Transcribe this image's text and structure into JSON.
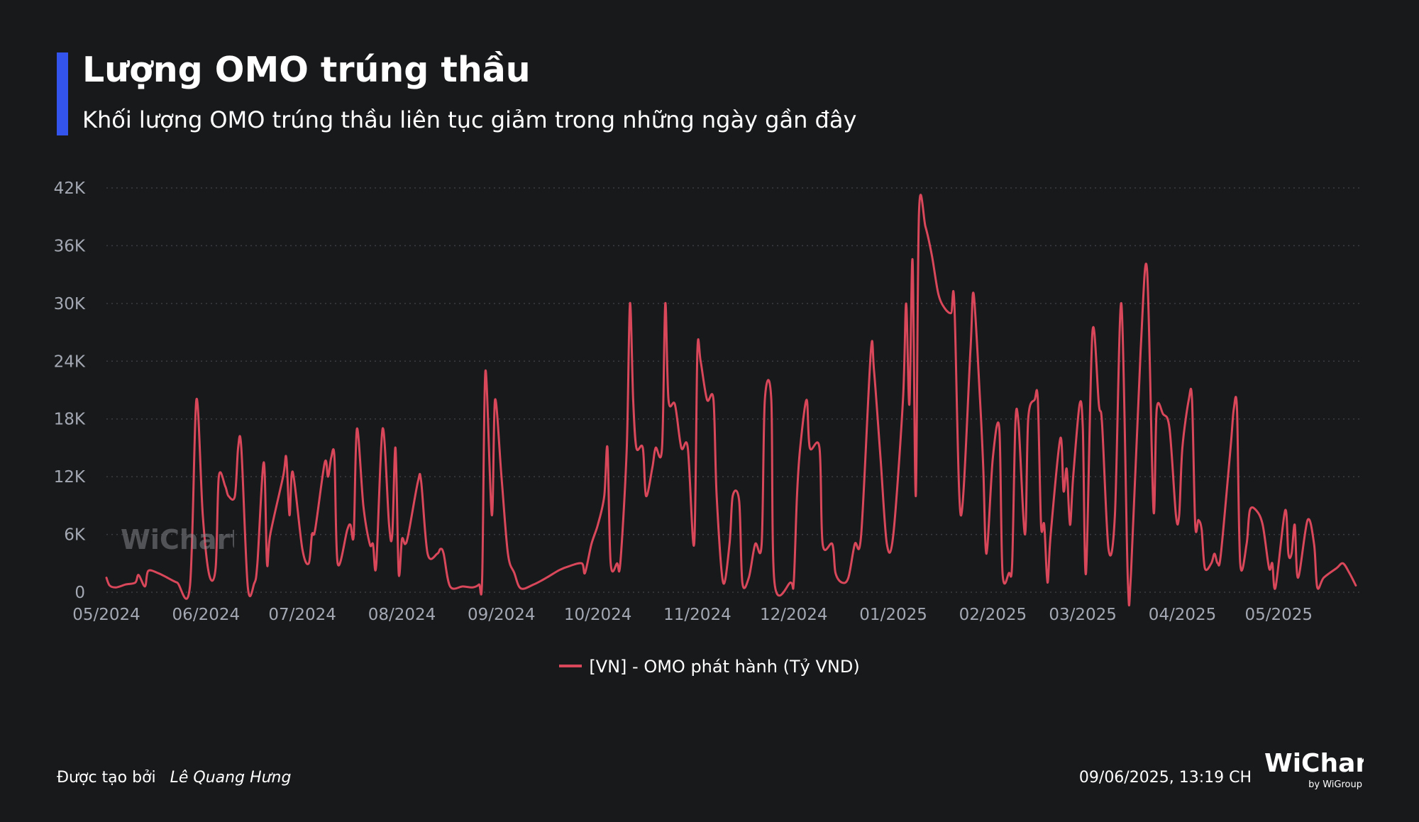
{
  "header": {
    "title": "Lượng OMO trúng thầu",
    "subtitle": "Khối lượng OMO trúng thầu liên tục giảm trong những ngày gần đây",
    "accent_color": "#3355ee"
  },
  "chart_data": {
    "type": "line",
    "title": "Lượng OMO trúng thầu",
    "subtitle": "Khối lượng OMO trúng thầu liên tục giảm trong những ngày gần đây",
    "xlabel": "",
    "ylabel": "",
    "ylim": [
      0,
      42000
    ],
    "y_ticks": [
      0,
      6000,
      12000,
      18000,
      24000,
      30000,
      36000,
      42000
    ],
    "y_tick_labels": [
      "0",
      "6K",
      "12K",
      "18K",
      "24K",
      "30K",
      "36K",
      "42K"
    ],
    "x_range": [
      "2024-05-01",
      "2025-05-27"
    ],
    "x_ticks": [
      "2024-05-01",
      "2024-06-01",
      "2024-07-01",
      "2024-08-01",
      "2024-09-01",
      "2024-10-01",
      "2024-11-01",
      "2024-12-01",
      "2025-01-01",
      "2025-02-01",
      "2025-03-01",
      "2025-04-01",
      "2025-05-01"
    ],
    "x_tick_labels": [
      "05/2024",
      "06/2024",
      "07/2024",
      "08/2024",
      "09/2024",
      "10/2024",
      "11/2024",
      "12/2024",
      "01/2025",
      "02/2025",
      "03/2025",
      "04/2025",
      "05/2025"
    ],
    "grid": "horizontal-dotted",
    "legend_position": "bottom-center",
    "series": [
      {
        "name": "[VN] - OMO phát hành (Tỷ VND)",
        "color": "#d9475a",
        "points": [
          [
            "2024-05-01",
            1500
          ],
          [
            "2024-05-02",
            700
          ],
          [
            "2024-05-04",
            500
          ],
          [
            "2024-05-07",
            800
          ],
          [
            "2024-05-10",
            1000
          ],
          [
            "2024-05-11",
            1800
          ],
          [
            "2024-05-13",
            600
          ],
          [
            "2024-05-14",
            2200
          ],
          [
            "2024-05-17",
            2000
          ],
          [
            "2024-05-20",
            1500
          ],
          [
            "2024-05-23",
            1000
          ],
          [
            "2024-05-27",
            600
          ],
          [
            "2024-05-29",
            20000
          ],
          [
            "2024-05-31",
            8000
          ],
          [
            "2024-06-02",
            1800
          ],
          [
            "2024-06-04",
            2500
          ],
          [
            "2024-06-05",
            12000
          ],
          [
            "2024-06-07",
            11000
          ],
          [
            "2024-06-08",
            10000
          ],
          [
            "2024-06-10",
            10000
          ],
          [
            "2024-06-11",
            15000
          ],
          [
            "2024-06-12",
            15000
          ],
          [
            "2024-06-14",
            600
          ],
          [
            "2024-06-16",
            900
          ],
          [
            "2024-06-17",
            3000
          ],
          [
            "2024-06-19",
            13500
          ],
          [
            "2024-06-20",
            3000
          ],
          [
            "2024-06-21",
            6000
          ],
          [
            "2024-06-25",
            12000
          ],
          [
            "2024-06-26",
            14000
          ],
          [
            "2024-06-27",
            8000
          ],
          [
            "2024-06-28",
            12500
          ],
          [
            "2024-07-01",
            4500
          ],
          [
            "2024-07-03",
            3000
          ],
          [
            "2024-07-04",
            6000
          ],
          [
            "2024-07-05",
            6500
          ],
          [
            "2024-07-08",
            13500
          ],
          [
            "2024-07-09",
            12000
          ],
          [
            "2024-07-10",
            14000
          ],
          [
            "2024-07-11",
            14000
          ],
          [
            "2024-07-12",
            3000
          ],
          [
            "2024-07-15",
            6500
          ],
          [
            "2024-07-16",
            7000
          ],
          [
            "2024-07-17",
            6000
          ],
          [
            "2024-07-18",
            17000
          ],
          [
            "2024-07-20",
            9000
          ],
          [
            "2024-07-22",
            5000
          ],
          [
            "2024-07-23",
            5000
          ],
          [
            "2024-07-24",
            2800
          ],
          [
            "2024-07-26",
            17000
          ],
          [
            "2024-07-28",
            7000
          ],
          [
            "2024-07-29",
            6000
          ],
          [
            "2024-07-30",
            15000
          ],
          [
            "2024-07-31",
            2000
          ],
          [
            "2024-08-01",
            5500
          ],
          [
            "2024-08-02",
            5000
          ],
          [
            "2024-08-03",
            6000
          ],
          [
            "2024-08-06",
            11500
          ],
          [
            "2024-08-07",
            11500
          ],
          [
            "2024-08-09",
            4000
          ],
          [
            "2024-08-12",
            4000
          ],
          [
            "2024-08-13",
            4500
          ],
          [
            "2024-08-14",
            4000
          ],
          [
            "2024-08-16",
            600
          ],
          [
            "2024-08-20",
            600
          ],
          [
            "2024-08-23",
            500
          ],
          [
            "2024-08-25",
            800
          ],
          [
            "2024-08-26",
            1500
          ],
          [
            "2024-08-27",
            23000
          ],
          [
            "2024-08-29",
            8000
          ],
          [
            "2024-08-30",
            20000
          ],
          [
            "2024-09-01",
            12000
          ],
          [
            "2024-09-03",
            4000
          ],
          [
            "2024-09-05",
            2000
          ],
          [
            "2024-09-07",
            400
          ],
          [
            "2024-09-11",
            800
          ],
          [
            "2024-09-15",
            1500
          ],
          [
            "2024-09-19",
            2300
          ],
          [
            "2024-09-22",
            2700
          ],
          [
            "2024-09-26",
            3000
          ],
          [
            "2024-09-27",
            2000
          ],
          [
            "2024-09-29",
            5000
          ],
          [
            "2024-10-01",
            7000
          ],
          [
            "2024-10-03",
            10000
          ],
          [
            "2024-10-04",
            15000
          ],
          [
            "2024-10-05",
            3000
          ],
          [
            "2024-10-07",
            3000
          ],
          [
            "2024-10-08",
            3000
          ],
          [
            "2024-10-10",
            15000
          ],
          [
            "2024-10-11",
            30000
          ],
          [
            "2024-10-12",
            20000
          ],
          [
            "2024-10-13",
            15000
          ],
          [
            "2024-10-15",
            15000
          ],
          [
            "2024-10-16",
            10000
          ],
          [
            "2024-10-18",
            13000
          ],
          [
            "2024-10-19",
            15000
          ],
          [
            "2024-10-21",
            15000
          ],
          [
            "2024-10-22",
            30000
          ],
          [
            "2024-10-23",
            20000
          ],
          [
            "2024-10-25",
            19500
          ],
          [
            "2024-10-27",
            15000
          ],
          [
            "2024-10-29",
            15000
          ],
          [
            "2024-10-31",
            5000
          ],
          [
            "2024-11-01",
            25000
          ],
          [
            "2024-11-02",
            24000
          ],
          [
            "2024-11-04",
            20000
          ],
          [
            "2024-11-06",
            20000
          ],
          [
            "2024-11-07",
            10000
          ],
          [
            "2024-11-09",
            1000
          ],
          [
            "2024-11-11",
            5000
          ],
          [
            "2024-11-12",
            10000
          ],
          [
            "2024-11-14",
            9500
          ],
          [
            "2024-11-15",
            1000
          ],
          [
            "2024-11-17",
            1500
          ],
          [
            "2024-11-19",
            5000
          ],
          [
            "2024-11-21",
            5000
          ],
          [
            "2024-11-22",
            20000
          ],
          [
            "2024-11-24",
            20000
          ],
          [
            "2024-11-25",
            1000
          ],
          [
            "2024-11-30",
            1000
          ],
          [
            "2024-12-01",
            1000
          ],
          [
            "2024-12-02",
            10000
          ],
          [
            "2024-12-03",
            15000
          ],
          [
            "2024-12-05",
            20000
          ],
          [
            "2024-12-06",
            15000
          ],
          [
            "2024-12-09",
            15000
          ],
          [
            "2024-12-10",
            5000
          ],
          [
            "2024-12-13",
            5000
          ],
          [
            "2024-12-14",
            2000
          ],
          [
            "2024-12-16",
            1000
          ],
          [
            "2024-12-18",
            1500
          ],
          [
            "2024-12-20",
            5000
          ],
          [
            "2024-12-22",
            6000
          ],
          [
            "2024-12-25",
            25000
          ],
          [
            "2024-12-26",
            23000
          ],
          [
            "2024-12-28",
            14000
          ],
          [
            "2024-12-30",
            5000
          ],
          [
            "2025-01-01",
            6000
          ],
          [
            "2025-01-04",
            20000
          ],
          [
            "2025-01-05",
            30000
          ],
          [
            "2025-01-06",
            19500
          ],
          [
            "2025-01-07",
            34500
          ],
          [
            "2025-01-08",
            10000
          ],
          [
            "2025-01-09",
            39500
          ],
          [
            "2025-01-11",
            38000
          ],
          [
            "2025-01-13",
            35000
          ],
          [
            "2025-01-15",
            31000
          ],
          [
            "2025-01-17",
            29500
          ],
          [
            "2025-01-19",
            29000
          ],
          [
            "2025-01-20",
            30000
          ],
          [
            "2025-01-22",
            8000
          ],
          [
            "2025-01-25",
            25000
          ],
          [
            "2025-01-26",
            31000
          ],
          [
            "2025-01-28",
            20000
          ],
          [
            "2025-01-29",
            13000
          ],
          [
            "2025-01-30",
            4000
          ],
          [
            "2025-02-01",
            14000
          ],
          [
            "2025-02-03",
            17000
          ],
          [
            "2025-02-04",
            2000
          ],
          [
            "2025-02-06",
            2000
          ],
          [
            "2025-02-07",
            3000
          ],
          [
            "2025-02-08",
            17500
          ],
          [
            "2025-02-09",
            17500
          ],
          [
            "2025-02-11",
            6000
          ],
          [
            "2025-02-12",
            18000
          ],
          [
            "2025-02-14",
            20000
          ],
          [
            "2025-02-15",
            20000
          ],
          [
            "2025-02-16",
            7000
          ],
          [
            "2025-02-17",
            7000
          ],
          [
            "2025-02-18",
            1000
          ],
          [
            "2025-02-19",
            6000
          ],
          [
            "2025-02-22",
            16000
          ],
          [
            "2025-02-23",
            10500
          ],
          [
            "2025-02-24",
            12800
          ],
          [
            "2025-02-25",
            7000
          ],
          [
            "2025-02-26",
            12000
          ],
          [
            "2025-02-28",
            19500
          ],
          [
            "2025-03-01",
            17000
          ],
          [
            "2025-03-02",
            2000
          ],
          [
            "2025-03-04",
            27000
          ],
          [
            "2025-03-06",
            19500
          ],
          [
            "2025-03-07",
            17500
          ],
          [
            "2025-03-09",
            4500
          ],
          [
            "2025-03-11",
            8000
          ],
          [
            "2025-03-13",
            30000
          ],
          [
            "2025-03-15",
            1500
          ],
          [
            "2025-03-16",
            2000
          ],
          [
            "2025-03-19",
            25000
          ],
          [
            "2025-03-21",
            33500
          ],
          [
            "2025-03-23",
            8500
          ],
          [
            "2025-03-24",
            19000
          ],
          [
            "2025-03-26",
            18500
          ],
          [
            "2025-03-28",
            17000
          ],
          [
            "2025-03-30",
            8000
          ],
          [
            "2025-03-31",
            8000
          ],
          [
            "2025-04-01",
            15000
          ],
          [
            "2025-04-03",
            20000
          ],
          [
            "2025-04-04",
            20000
          ],
          [
            "2025-04-05",
            7000
          ],
          [
            "2025-04-06",
            7500
          ],
          [
            "2025-04-07",
            6500
          ],
          [
            "2025-04-08",
            2500
          ],
          [
            "2025-04-10",
            3000
          ],
          [
            "2025-04-11",
            4000
          ],
          [
            "2025-04-12",
            3000
          ],
          [
            "2025-04-13",
            4000
          ],
          [
            "2025-04-16",
            15000
          ],
          [
            "2025-04-17",
            19000
          ],
          [
            "2025-04-18",
            19000
          ],
          [
            "2025-04-19",
            3000
          ],
          [
            "2025-04-21",
            5000
          ],
          [
            "2025-04-22",
            8500
          ],
          [
            "2025-04-24",
            8500
          ],
          [
            "2025-04-26",
            7000
          ],
          [
            "2025-04-28",
            2500
          ],
          [
            "2025-04-29",
            3000
          ],
          [
            "2025-04-30",
            500
          ],
          [
            "2025-05-03",
            8500
          ],
          [
            "2025-05-04",
            4000
          ],
          [
            "2025-05-05",
            4000
          ],
          [
            "2025-05-06",
            7000
          ],
          [
            "2025-05-07",
            1500
          ],
          [
            "2025-05-10",
            7500
          ],
          [
            "2025-05-12",
            5000
          ],
          [
            "2025-05-13",
            500
          ],
          [
            "2025-05-15",
            1500
          ],
          [
            "2025-05-19",
            2500
          ],
          [
            "2025-05-21",
            3000
          ],
          [
            "2025-05-23",
            2000
          ],
          [
            "2025-05-25",
            700
          ]
        ]
      }
    ]
  },
  "legend": {
    "label": "[VN] - OMO phát hành (Tỷ VND)",
    "color": "#d9475a"
  },
  "footer": {
    "created_by_label": "Được tạo bởi",
    "author": "Lê Quang Hưng",
    "timestamp": "09/06/2025, 13:19 CH"
  },
  "brand": {
    "name": "WiChart",
    "byline": "by WiGroup",
    "watermark": "WiChart"
  }
}
